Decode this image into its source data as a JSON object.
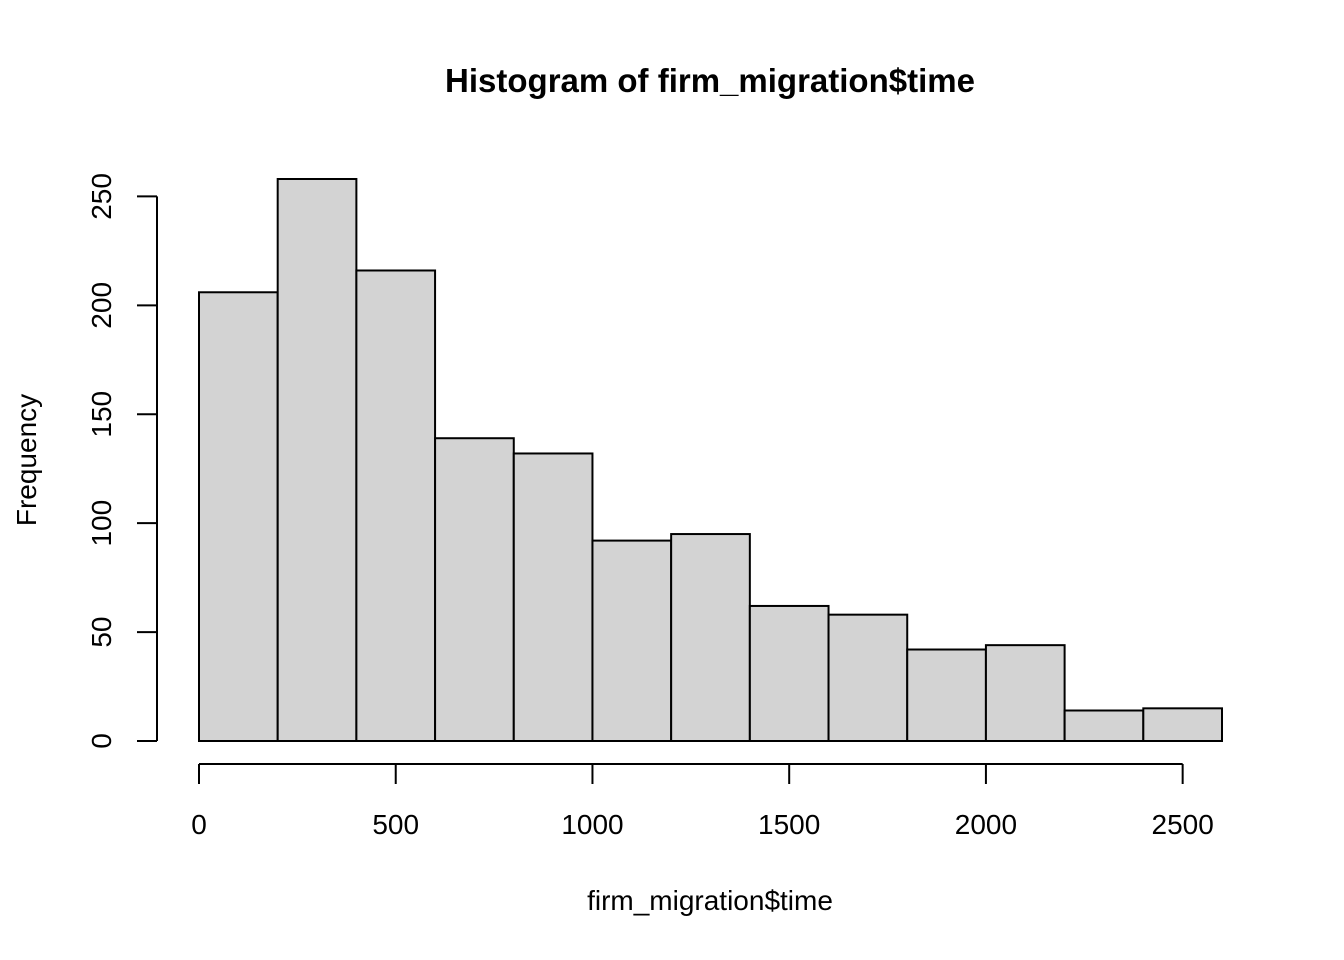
{
  "chart_data": {
    "type": "bar",
    "title": "Histogram of firm_migration$time",
    "xlabel": "firm_migration$time",
    "ylabel": "Frequency",
    "bins": [
      {
        "x0": 0,
        "x1": 200,
        "count": 206
      },
      {
        "x0": 200,
        "x1": 400,
        "count": 258
      },
      {
        "x0": 400,
        "x1": 600,
        "count": 216
      },
      {
        "x0": 600,
        "x1": 800,
        "count": 139
      },
      {
        "x0": 800,
        "x1": 1000,
        "count": 132
      },
      {
        "x0": 1000,
        "x1": 1200,
        "count": 92
      },
      {
        "x0": 1200,
        "x1": 1400,
        "count": 95
      },
      {
        "x0": 1400,
        "x1": 1600,
        "count": 62
      },
      {
        "x0": 1600,
        "x1": 1800,
        "count": 58
      },
      {
        "x0": 1800,
        "x1": 2000,
        "count": 42
      },
      {
        "x0": 2000,
        "x1": 2200,
        "count": 44
      },
      {
        "x0": 2200,
        "x1": 2400,
        "count": 14
      },
      {
        "x0": 2400,
        "x1": 2600,
        "count": 15
      }
    ],
    "x_ticks": [
      0,
      500,
      1000,
      1500,
      2000,
      2500
    ],
    "y_ticks": [
      0,
      50,
      100,
      150,
      200,
      250
    ],
    "xlim": [
      0,
      2600
    ],
    "ylim": [
      0,
      258
    ],
    "grid": false,
    "bar_fill": "#d3d3d3",
    "bar_edge": "#000000"
  }
}
